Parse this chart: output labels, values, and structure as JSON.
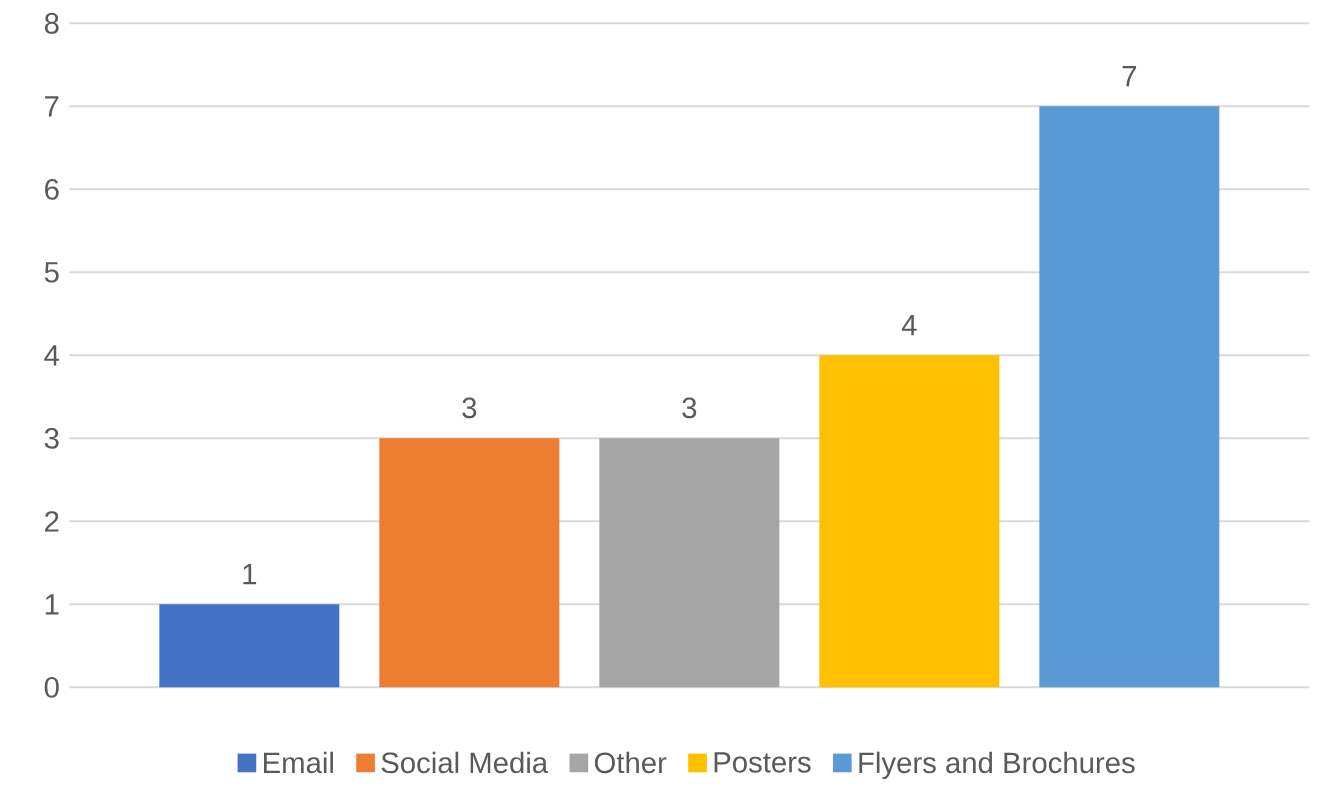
{
  "chart_data": {
    "type": "bar",
    "categories": [
      null
    ],
    "series": [
      {
        "name": "Email",
        "color": "#4472c4",
        "values": [
          1
        ]
      },
      {
        "name": "Social Media",
        "color": "#ed7d31",
        "values": [
          3
        ]
      },
      {
        "name": "Other",
        "color": "#a5a5a5",
        "values": [
          3
        ]
      },
      {
        "name": "Posters",
        "color": "#ffc000",
        "values": [
          4
        ]
      },
      {
        "name": "Flyers and Brochures",
        "color": "#5b9bd5",
        "values": [
          7
        ]
      }
    ],
    "ylim": [
      0,
      8
    ],
    "yticks": [
      0,
      1,
      2,
      3,
      4,
      5,
      6,
      7,
      8
    ],
    "grid": "y",
    "legend": "bottom",
    "data_labels": true
  }
}
